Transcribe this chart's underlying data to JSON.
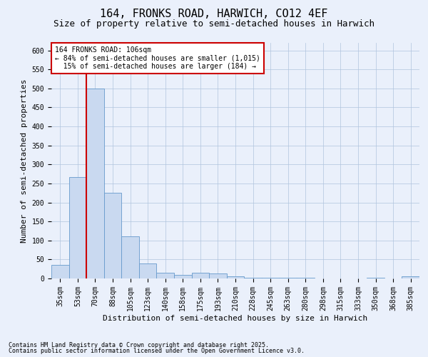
{
  "title": "164, FRONKS ROAD, HARWICH, CO12 4EF",
  "subtitle": "Size of property relative to semi-detached houses in Harwich",
  "xlabel": "Distribution of semi-detached houses by size in Harwich",
  "ylabel": "Number of semi-detached properties",
  "categories": [
    "35sqm",
    "53sqm",
    "70sqm",
    "88sqm",
    "105sqm",
    "123sqm",
    "140sqm",
    "158sqm",
    "175sqm",
    "193sqm",
    "210sqm",
    "228sqm",
    "245sqm",
    "263sqm",
    "280sqm",
    "298sqm",
    "315sqm",
    "333sqm",
    "350sqm",
    "368sqm",
    "385sqm"
  ],
  "values": [
    35,
    267,
    500,
    225,
    110,
    40,
    15,
    10,
    15,
    13,
    5,
    1,
    1,
    1,
    1,
    0,
    0,
    0,
    2,
    0,
    5
  ],
  "bar_color": "#c9d9f0",
  "bar_edge_color": "#6699cc",
  "vline_x_index": 2,
  "annotation_text": "164 FRONKS ROAD: 106sqm\n← 84% of semi-detached houses are smaller (1,015)\n  15% of semi-detached houses are larger (184) →",
  "annotation_box_color": "#ffffff",
  "annotation_box_edgecolor": "#cc0000",
  "ylim": [
    0,
    620
  ],
  "yticks": [
    0,
    50,
    100,
    150,
    200,
    250,
    300,
    350,
    400,
    450,
    500,
    550,
    600
  ],
  "bg_color": "#eaf0fb",
  "footer_line1": "Contains HM Land Registry data © Crown copyright and database right 2025.",
  "footer_line2": "Contains public sector information licensed under the Open Government Licence v3.0.",
  "title_fontsize": 11,
  "subtitle_fontsize": 9,
  "tick_fontsize": 7,
  "label_fontsize": 8,
  "annot_fontsize": 7
}
